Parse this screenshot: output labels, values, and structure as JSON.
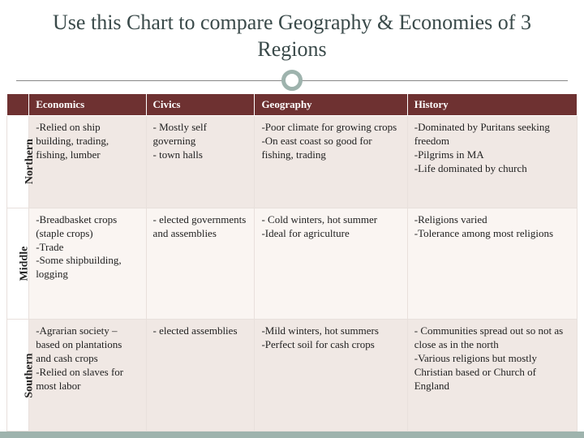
{
  "title": "Use this Chart to compare Geography & Economies of 3 Regions",
  "colors": {
    "header_bg": "#6e3131",
    "header_text": "#ffffff",
    "row_alt_a": "#f0e8e4",
    "row_alt_b": "#faf5f2",
    "accent": "#9eb3ad",
    "title_color": "#3a4a4a"
  },
  "columns": [
    "Economics",
    "Civics",
    "Geography",
    "History"
  ],
  "rows": [
    {
      "label": "Northern",
      "cells": [
        "-Relied on ship building, trading, fishing, lumber",
        "- Mostly self governing\n- town halls",
        "-Poor climate for growing crops\n-On east coast so good for fishing, trading",
        "-Dominated by Puritans seeking freedom\n-Pilgrims in MA\n-Life dominated by church"
      ]
    },
    {
      "label": "Middle",
      "cells": [
        "-Breadbasket crops (staple crops)\n-Trade\n-Some shipbuilding, logging",
        "- elected governments and assemblies",
        "- Cold winters, hot summer\n-Ideal for agriculture",
        "-Religions varied\n-Tolerance among most religions"
      ]
    },
    {
      "label": "Southern",
      "cells": [
        "-Agrarian society – based on plantations and cash crops\n-Relied on slaves for most labor",
        "- elected assemblies",
        "-Mild winters, hot summers\n-Perfect soil for cash crops",
        "- Communities spread out so not as close as in the north\n-Various religions but mostly Christian based or Church of England"
      ]
    }
  ]
}
